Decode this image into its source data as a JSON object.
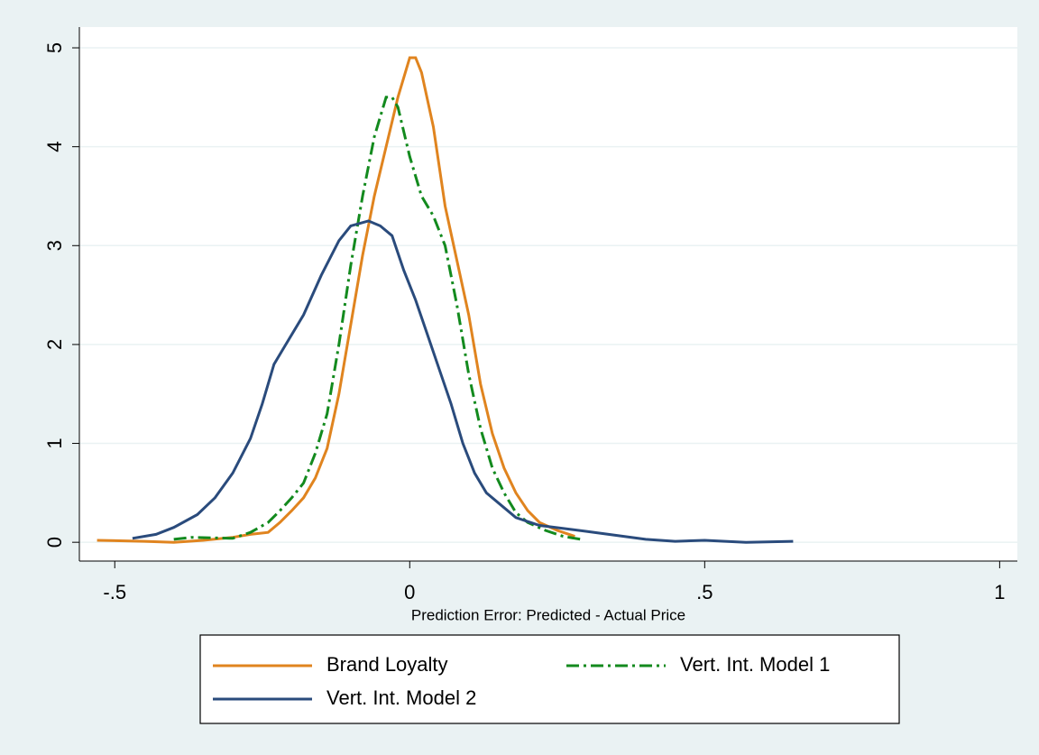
{
  "chart_data": {
    "type": "line",
    "xlabel": "Prediction Error: Predicted - Actual Price",
    "xlim": [
      -0.56,
      1.03
    ],
    "ylim": [
      -0.19,
      5.21
    ],
    "xticks": [
      {
        "value": -0.5,
        "label": "-.5"
      },
      0,
      {
        "value": 0.5,
        "label": ".5"
      },
      1
    ],
    "yticks": [
      0,
      1,
      2,
      3,
      4,
      5
    ],
    "grid": true,
    "legend": "bottom",
    "series": [
      {
        "name": "Brand Loyalty",
        "color": "#e0841f",
        "dash": "solid",
        "x": [
          -0.53,
          -0.45,
          -0.4,
          -0.35,
          -0.3,
          -0.27,
          -0.24,
          -0.22,
          -0.2,
          -0.18,
          -0.16,
          -0.14,
          -0.12,
          -0.1,
          -0.08,
          -0.06,
          -0.04,
          -0.02,
          0,
          0.01,
          0.02,
          0.04,
          0.06,
          0.08,
          0.1,
          0.12,
          0.14,
          0.16,
          0.18,
          0.2,
          0.22,
          0.25,
          0.28
        ],
        "values": [
          0.02,
          0.01,
          0.0,
          0.02,
          0.05,
          0.08,
          0.1,
          0.2,
          0.32,
          0.45,
          0.65,
          0.95,
          1.5,
          2.2,
          2.9,
          3.5,
          4.0,
          4.5,
          4.9,
          4.9,
          4.75,
          4.2,
          3.4,
          2.85,
          2.3,
          1.6,
          1.1,
          0.75,
          0.5,
          0.32,
          0.2,
          0.12,
          0.06
        ]
      },
      {
        "name": "Vert. Int. Model 1",
        "color": "#138a1e",
        "dash": "dashdot",
        "x": [
          -0.4,
          -0.37,
          -0.3,
          -0.27,
          -0.24,
          -0.22,
          -0.2,
          -0.18,
          -0.16,
          -0.14,
          -0.12,
          -0.1,
          -0.08,
          -0.06,
          -0.04,
          -0.03,
          -0.02,
          0,
          0.02,
          0.04,
          0.06,
          0.08,
          0.1,
          0.12,
          0.14,
          0.16,
          0.18,
          0.2,
          0.23,
          0.26,
          0.29
        ],
        "values": [
          0.03,
          0.05,
          0.04,
          0.1,
          0.2,
          0.32,
          0.45,
          0.6,
          0.9,
          1.3,
          2.0,
          2.8,
          3.5,
          4.1,
          4.5,
          4.5,
          4.4,
          3.9,
          3.5,
          3.3,
          3.0,
          2.4,
          1.7,
          1.15,
          0.75,
          0.5,
          0.3,
          0.2,
          0.12,
          0.06,
          0.03
        ]
      },
      {
        "name": "Vert. Int. Model 2",
        "color": "#2a4b7c",
        "dash": "solid",
        "x": [
          -0.47,
          -0.43,
          -0.4,
          -0.36,
          -0.33,
          -0.3,
          -0.27,
          -0.25,
          -0.23,
          -0.21,
          -0.18,
          -0.15,
          -0.12,
          -0.1,
          -0.07,
          -0.05,
          -0.03,
          -0.01,
          0.01,
          0.03,
          0.05,
          0.07,
          0.09,
          0.11,
          0.13,
          0.16,
          0.18,
          0.22,
          0.3,
          0.35,
          0.4,
          0.45,
          0.5,
          0.57,
          0.65
        ],
        "values": [
          0.04,
          0.08,
          0.15,
          0.28,
          0.45,
          0.7,
          1.05,
          1.4,
          1.8,
          2.0,
          2.3,
          2.7,
          3.05,
          3.2,
          3.25,
          3.2,
          3.1,
          2.75,
          2.45,
          2.1,
          1.75,
          1.4,
          1.0,
          0.7,
          0.5,
          0.35,
          0.25,
          0.17,
          0.11,
          0.07,
          0.03,
          0.01,
          0.02,
          0.0,
          0.01
        ]
      }
    ]
  }
}
